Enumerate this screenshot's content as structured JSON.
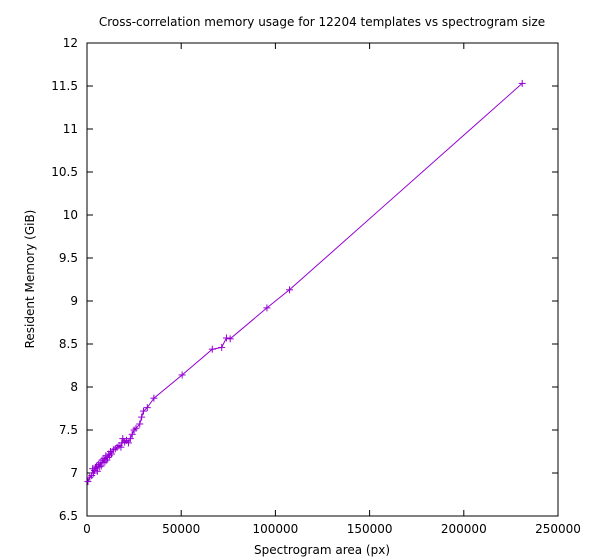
{
  "chart_data": {
    "type": "line",
    "title": "Cross-correlation memory usage for 12204 templates vs spectrogram size",
    "xlabel": "Spectrogram area (px)",
    "ylabel": "Resident Memory (GiB)",
    "xlim": [
      0,
      250000
    ],
    "ylim": [
      6.5,
      12
    ],
    "xticks": [
      0,
      50000,
      100000,
      150000,
      200000,
      250000
    ],
    "yticks": [
      6.5,
      7,
      7.5,
      8,
      8.5,
      9,
      9.5,
      10,
      10.5,
      11,
      11.5,
      12
    ],
    "grid": false,
    "legend": "none",
    "marker": "plus",
    "series": [
      {
        "color": "#9400d3",
        "x": [
          500,
          1500,
          2500,
          3000,
          3500,
          4000,
          4500,
          5000,
          5500,
          6000,
          6500,
          7000,
          7500,
          8000,
          8500,
          9000,
          9500,
          10000,
          10500,
          11000,
          11500,
          12000,
          12500,
          13000,
          14000,
          15000,
          16000,
          17000,
          18000,
          18500,
          19000,
          20000,
          21000,
          22000,
          23000,
          24000,
          25000,
          26000,
          28000,
          29000,
          30000,
          32000,
          35500,
          50500,
          66500,
          71500,
          74000,
          76000,
          95500,
          107500,
          231000
        ],
        "y": [
          6.9,
          6.95,
          6.97,
          7.05,
          7.0,
          7.03,
          7.06,
          7.08,
          7.02,
          7.1,
          7.07,
          7.12,
          7.08,
          7.15,
          7.12,
          7.17,
          7.13,
          7.2,
          7.15,
          7.18,
          7.22,
          7.2,
          7.25,
          7.22,
          7.27,
          7.28,
          7.3,
          7.32,
          7.3,
          7.35,
          7.4,
          7.36,
          7.38,
          7.35,
          7.4,
          7.45,
          7.5,
          7.52,
          7.57,
          7.65,
          7.72,
          7.76,
          7.87,
          8.14,
          8.44,
          8.46,
          8.57,
          8.56,
          8.92,
          9.13,
          11.53
        ]
      }
    ]
  }
}
